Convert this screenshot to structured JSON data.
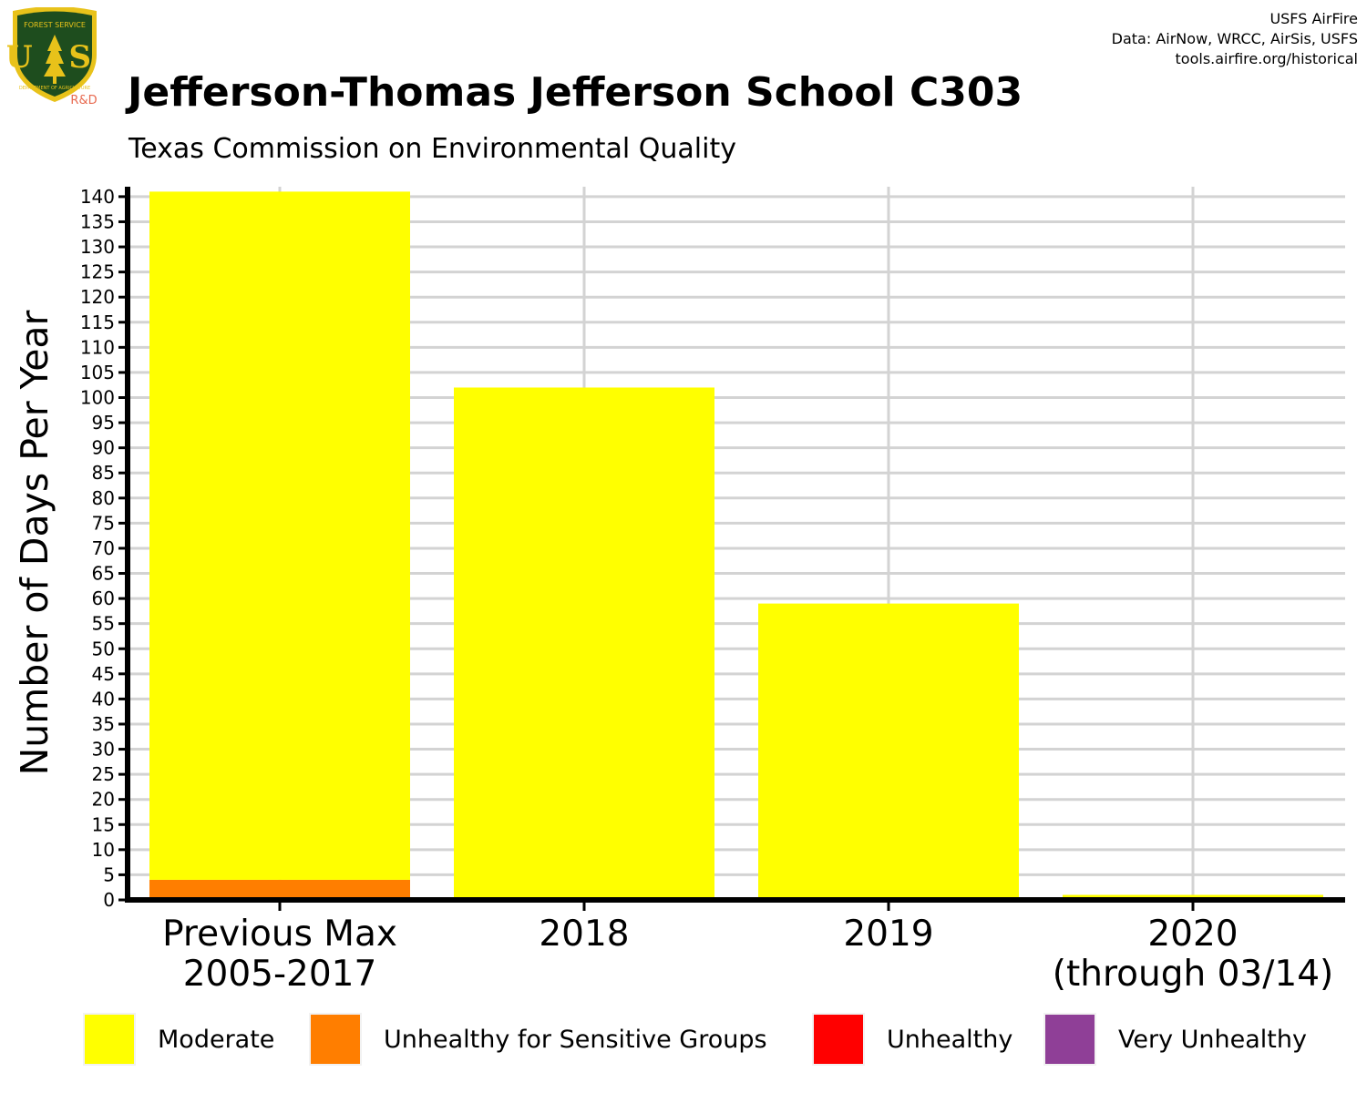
{
  "logo": {
    "arc_text": "FOREST SERVICE",
    "letters": "U S",
    "bottom_text": "DEPARTMENT OF AGRICULTURE",
    "tag": "R&D",
    "colors": {
      "green": "#1e4d1e",
      "gold": "#e8c21a",
      "tag": "#e86a50"
    }
  },
  "credits": {
    "line1": "USFS AirFire",
    "line2": "Data: AirNow, WRCC, AirSis, USFS",
    "line3": "tools.airfire.org/historical"
  },
  "chart_data": {
    "type": "bar",
    "stacked": true,
    "title": "Jefferson-Thomas Jefferson School C303",
    "subtitle": "Texas Commission on Environmental Quality",
    "xlabel": "",
    "ylabel": "Number of Days Per Year",
    "categories": [
      [
        "Previous Max",
        "2005-2017"
      ],
      [
        "2018"
      ],
      [
        "2019"
      ],
      [
        "2020",
        "(through 03/14)"
      ]
    ],
    "ylim": [
      0,
      142
    ],
    "yticks": [
      0,
      5,
      10,
      15,
      20,
      25,
      30,
      35,
      40,
      45,
      50,
      55,
      60,
      65,
      70,
      75,
      80,
      85,
      90,
      95,
      100,
      105,
      110,
      115,
      120,
      125,
      130,
      135,
      140
    ],
    "grid": true,
    "legend_position": "bottom",
    "series": [
      {
        "name": "Moderate",
        "color": "#ffff00",
        "values": [
          137,
          102,
          59,
          1
        ]
      },
      {
        "name": "Unhealthy for Sensitive Groups",
        "color": "#ff7e00",
        "values": [
          4,
          0,
          0,
          0
        ]
      },
      {
        "name": "Unhealthy",
        "color": "#ff0000",
        "values": [
          0,
          0,
          0,
          0
        ]
      },
      {
        "name": "Very Unhealthy",
        "color": "#8f3f97",
        "values": [
          0,
          0,
          0,
          0
        ]
      }
    ]
  }
}
